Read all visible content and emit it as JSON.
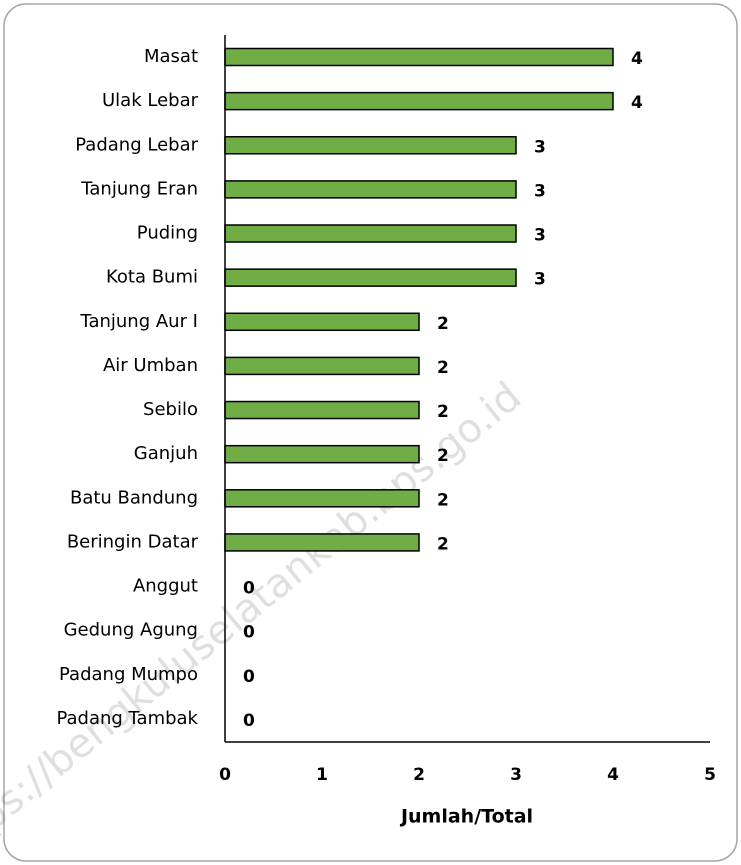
{
  "chart_data": {
    "type": "bar",
    "orientation": "horizontal",
    "categories": [
      "Masat",
      "Ulak Lebar",
      "Padang Lebar",
      "Tanjung Eran",
      "Puding",
      "Kota Bumi",
      "Tanjung Aur I",
      "Air Umban",
      "Sebilo",
      "Ganjuh",
      "Batu Bandung",
      "Beringin Datar",
      "Anggut",
      "Gedung Agung",
      "Padang Mumpo",
      "Padang Tambak"
    ],
    "values": [
      4,
      4,
      3,
      3,
      3,
      3,
      2,
      2,
      2,
      2,
      2,
      2,
      0,
      0,
      0,
      0
    ],
    "color": "#70ad47",
    "xlim": [
      0,
      5
    ],
    "xticks": [
      0,
      1,
      2,
      3,
      4,
      5
    ],
    "xlabel": "Jumlah/Total",
    "watermark": "https://bengkuluselatankab.bps.go.id"
  }
}
